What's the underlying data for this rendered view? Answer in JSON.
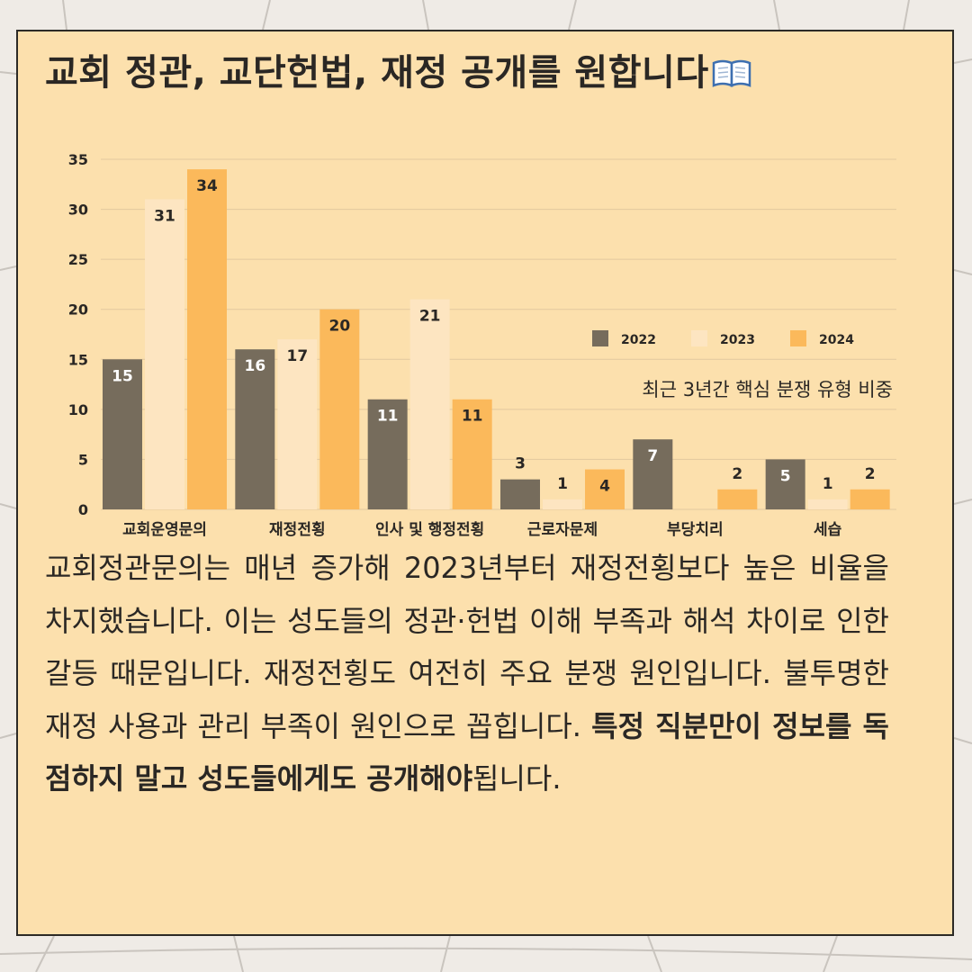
{
  "title": "교회 정관, 교단헌법, 재정 공개를 원합니다",
  "title_icon": "open-book-icon",
  "chart_data": {
    "type": "bar",
    "categories": [
      "교회운영문의",
      "재정전횡",
      "인사 및 행정전횡",
      "근로자문제",
      "부당치리",
      "세습"
    ],
    "series": [
      {
        "name": "2022",
        "color": "#766c5c",
        "values": [
          15,
          16,
          11,
          3,
          7,
          5
        ]
      },
      {
        "name": "2023",
        "color": "#fde5c1",
        "values": [
          31,
          17,
          21,
          1,
          0,
          1
        ]
      },
      {
        "name": "2024",
        "color": "#fbb95b",
        "values": [
          34,
          20,
          11,
          4,
          2,
          2
        ]
      }
    ],
    "ylim": [
      0,
      35
    ],
    "yticks": [
      0,
      5,
      10,
      15,
      20,
      25,
      30,
      35
    ],
    "annotation": "최근 3년간 핵심 분쟁 유형 비중",
    "legend_position": "right",
    "grid": true
  },
  "body": {
    "text": "교회정관문의는 매년 증가해 2023년부터 재정전횡보다 높은 비율을 차지했습니다. 이는 성도들의 정관·헌법 이해 부족과 해석 차이로 인한 갈등 때문입니다. 재정전횡도 여전히 주요 분쟁 원인입니다. 불투명한 재정 사용과 관리 부족이 원인으로 꼽힙니다. ",
    "strong": "특정 직분만이 정보를 독점하지 말고 성도들에게도 공개해야",
    "tail": "됩니다."
  },
  "colors": {
    "background": "#efebe6",
    "card": "#fce0ad",
    "text": "#2a2724",
    "grid": "#e2c89e"
  }
}
